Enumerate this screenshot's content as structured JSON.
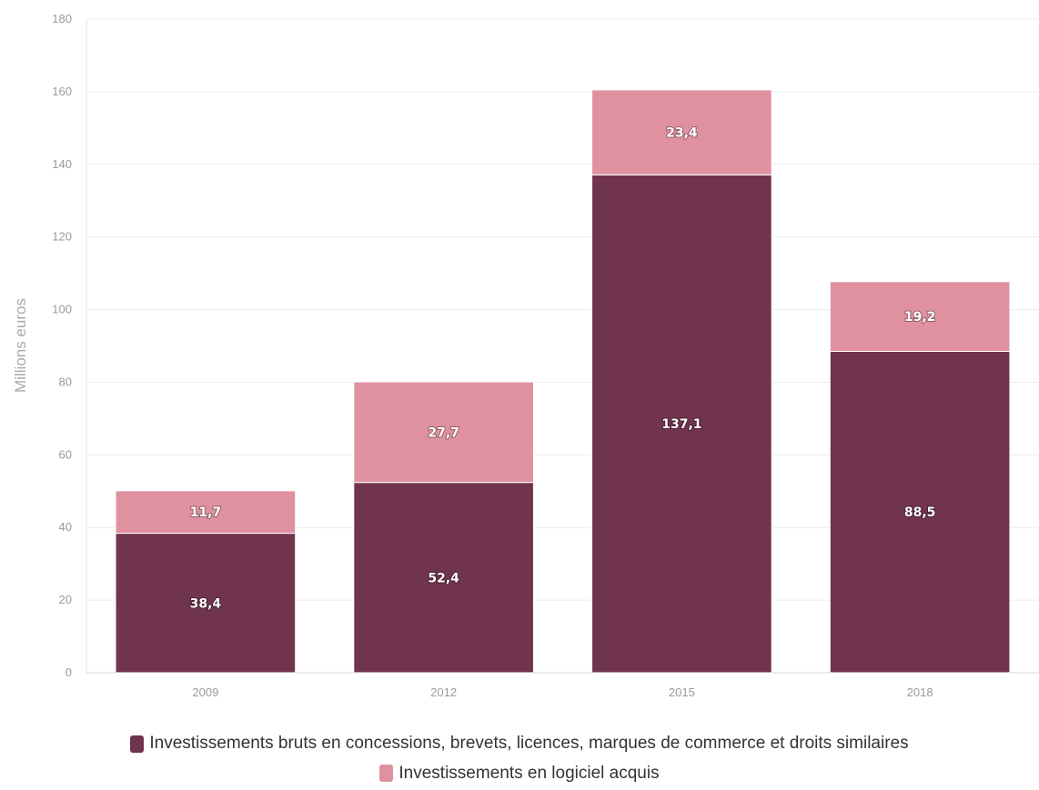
{
  "chart_data": {
    "type": "bar",
    "stacked": true,
    "categories": [
      "2009",
      "2012",
      "2015",
      "2018"
    ],
    "series": [
      {
        "name": "Investissements bruts en concessions, brevets, licences, marques de commerce et droits similaires",
        "values": [
          38.4,
          52.4,
          137.1,
          88.5
        ],
        "labels": [
          "38,4",
          "52,4",
          "137,1",
          "88,5"
        ],
        "color": "#70344d"
      },
      {
        "name": "Investissements en logiciel acquis",
        "values": [
          11.7,
          27.7,
          23.4,
          19.2
        ],
        "labels": [
          "11,7",
          "27,7",
          "23,4",
          "19,2"
        ],
        "color": "#e091a0"
      }
    ],
    "ylabel": "Millions euros",
    "xlabel": "",
    "ylim": [
      0,
      180
    ],
    "yticks": [
      "0",
      "20",
      "40",
      "60",
      "80",
      "100",
      "120",
      "140",
      "160",
      "180"
    ],
    "grid": true,
    "legend_position": "bottom"
  }
}
